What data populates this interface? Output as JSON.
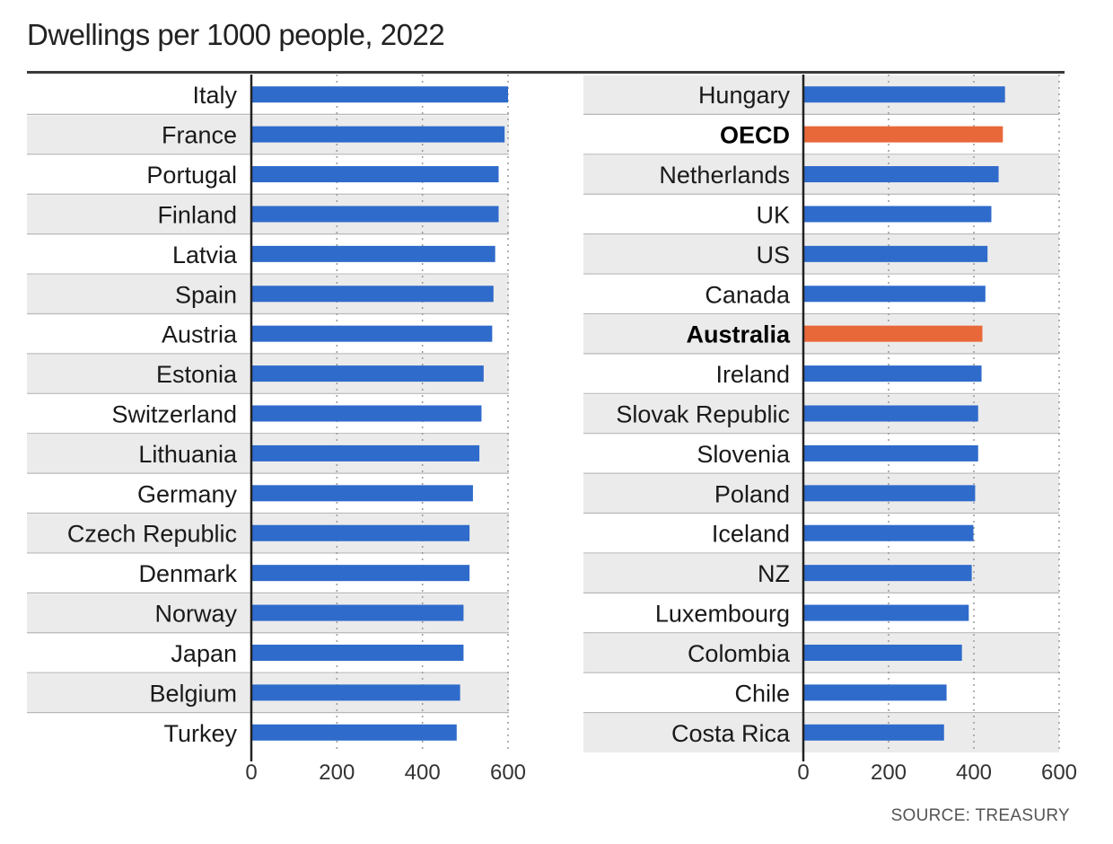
{
  "title": "Dwellings per 1000 people, 2022",
  "source": "SOURCE: TREASURY",
  "colors": {
    "bar": "#2f6bcb",
    "highlight": "#e8683a",
    "stripe": "#ebebeb",
    "grid": "#999999",
    "rule": "#3a3a3a"
  },
  "chart_data": [
    {
      "type": "bar",
      "orientation": "horizontal",
      "xlim": [
        0,
        600
      ],
      "xticks": [
        0,
        200,
        400,
        600
      ],
      "categories": [
        "Italy",
        "France",
        "Portugal",
        "Finland",
        "Latvia",
        "Spain",
        "Austria",
        "Estonia",
        "Switzerland",
        "Lithuania",
        "Germany",
        "Czech Republic",
        "Denmark",
        "Norway",
        "Japan",
        "Belgium",
        "Turkey"
      ],
      "values": [
        600,
        592,
        578,
        578,
        570,
        566,
        563,
        543,
        538,
        533,
        518,
        510,
        510,
        496,
        496,
        488,
        480
      ],
      "highlight": []
    },
    {
      "type": "bar",
      "orientation": "horizontal",
      "xlim": [
        0,
        600
      ],
      "xticks": [
        0,
        200,
        400,
        600
      ],
      "categories": [
        "Hungary",
        "OECD",
        "Netherlands",
        "UK",
        "US",
        "Canada",
        "Australia",
        "Ireland",
        "Slovak Republic",
        "Slovenia",
        "Poland",
        "Iceland",
        "NZ",
        "Luxembourg",
        "Colombia",
        "Chile",
        "Costa Rica"
      ],
      "values": [
        473,
        468,
        458,
        441,
        432,
        427,
        420,
        418,
        410,
        410,
        403,
        399,
        395,
        388,
        372,
        336,
        330
      ],
      "highlight": [
        "OECD",
        "Australia"
      ]
    }
  ]
}
